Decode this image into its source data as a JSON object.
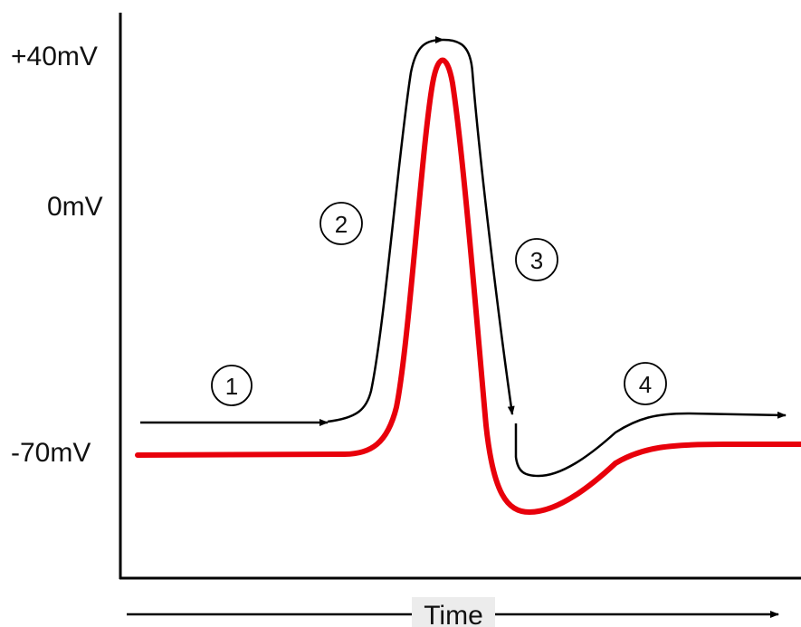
{
  "y_axis": {
    "labels": [
      "+40mV",
      "0mV",
      "-70mV"
    ]
  },
  "x_axis": {
    "label": "Time"
  },
  "phases": [
    "1",
    "2",
    "3",
    "4"
  ],
  "colors": {
    "trace": "#e8000b",
    "arrows": "#000000",
    "axis": "#000000",
    "label_bg": "#ececec"
  }
}
